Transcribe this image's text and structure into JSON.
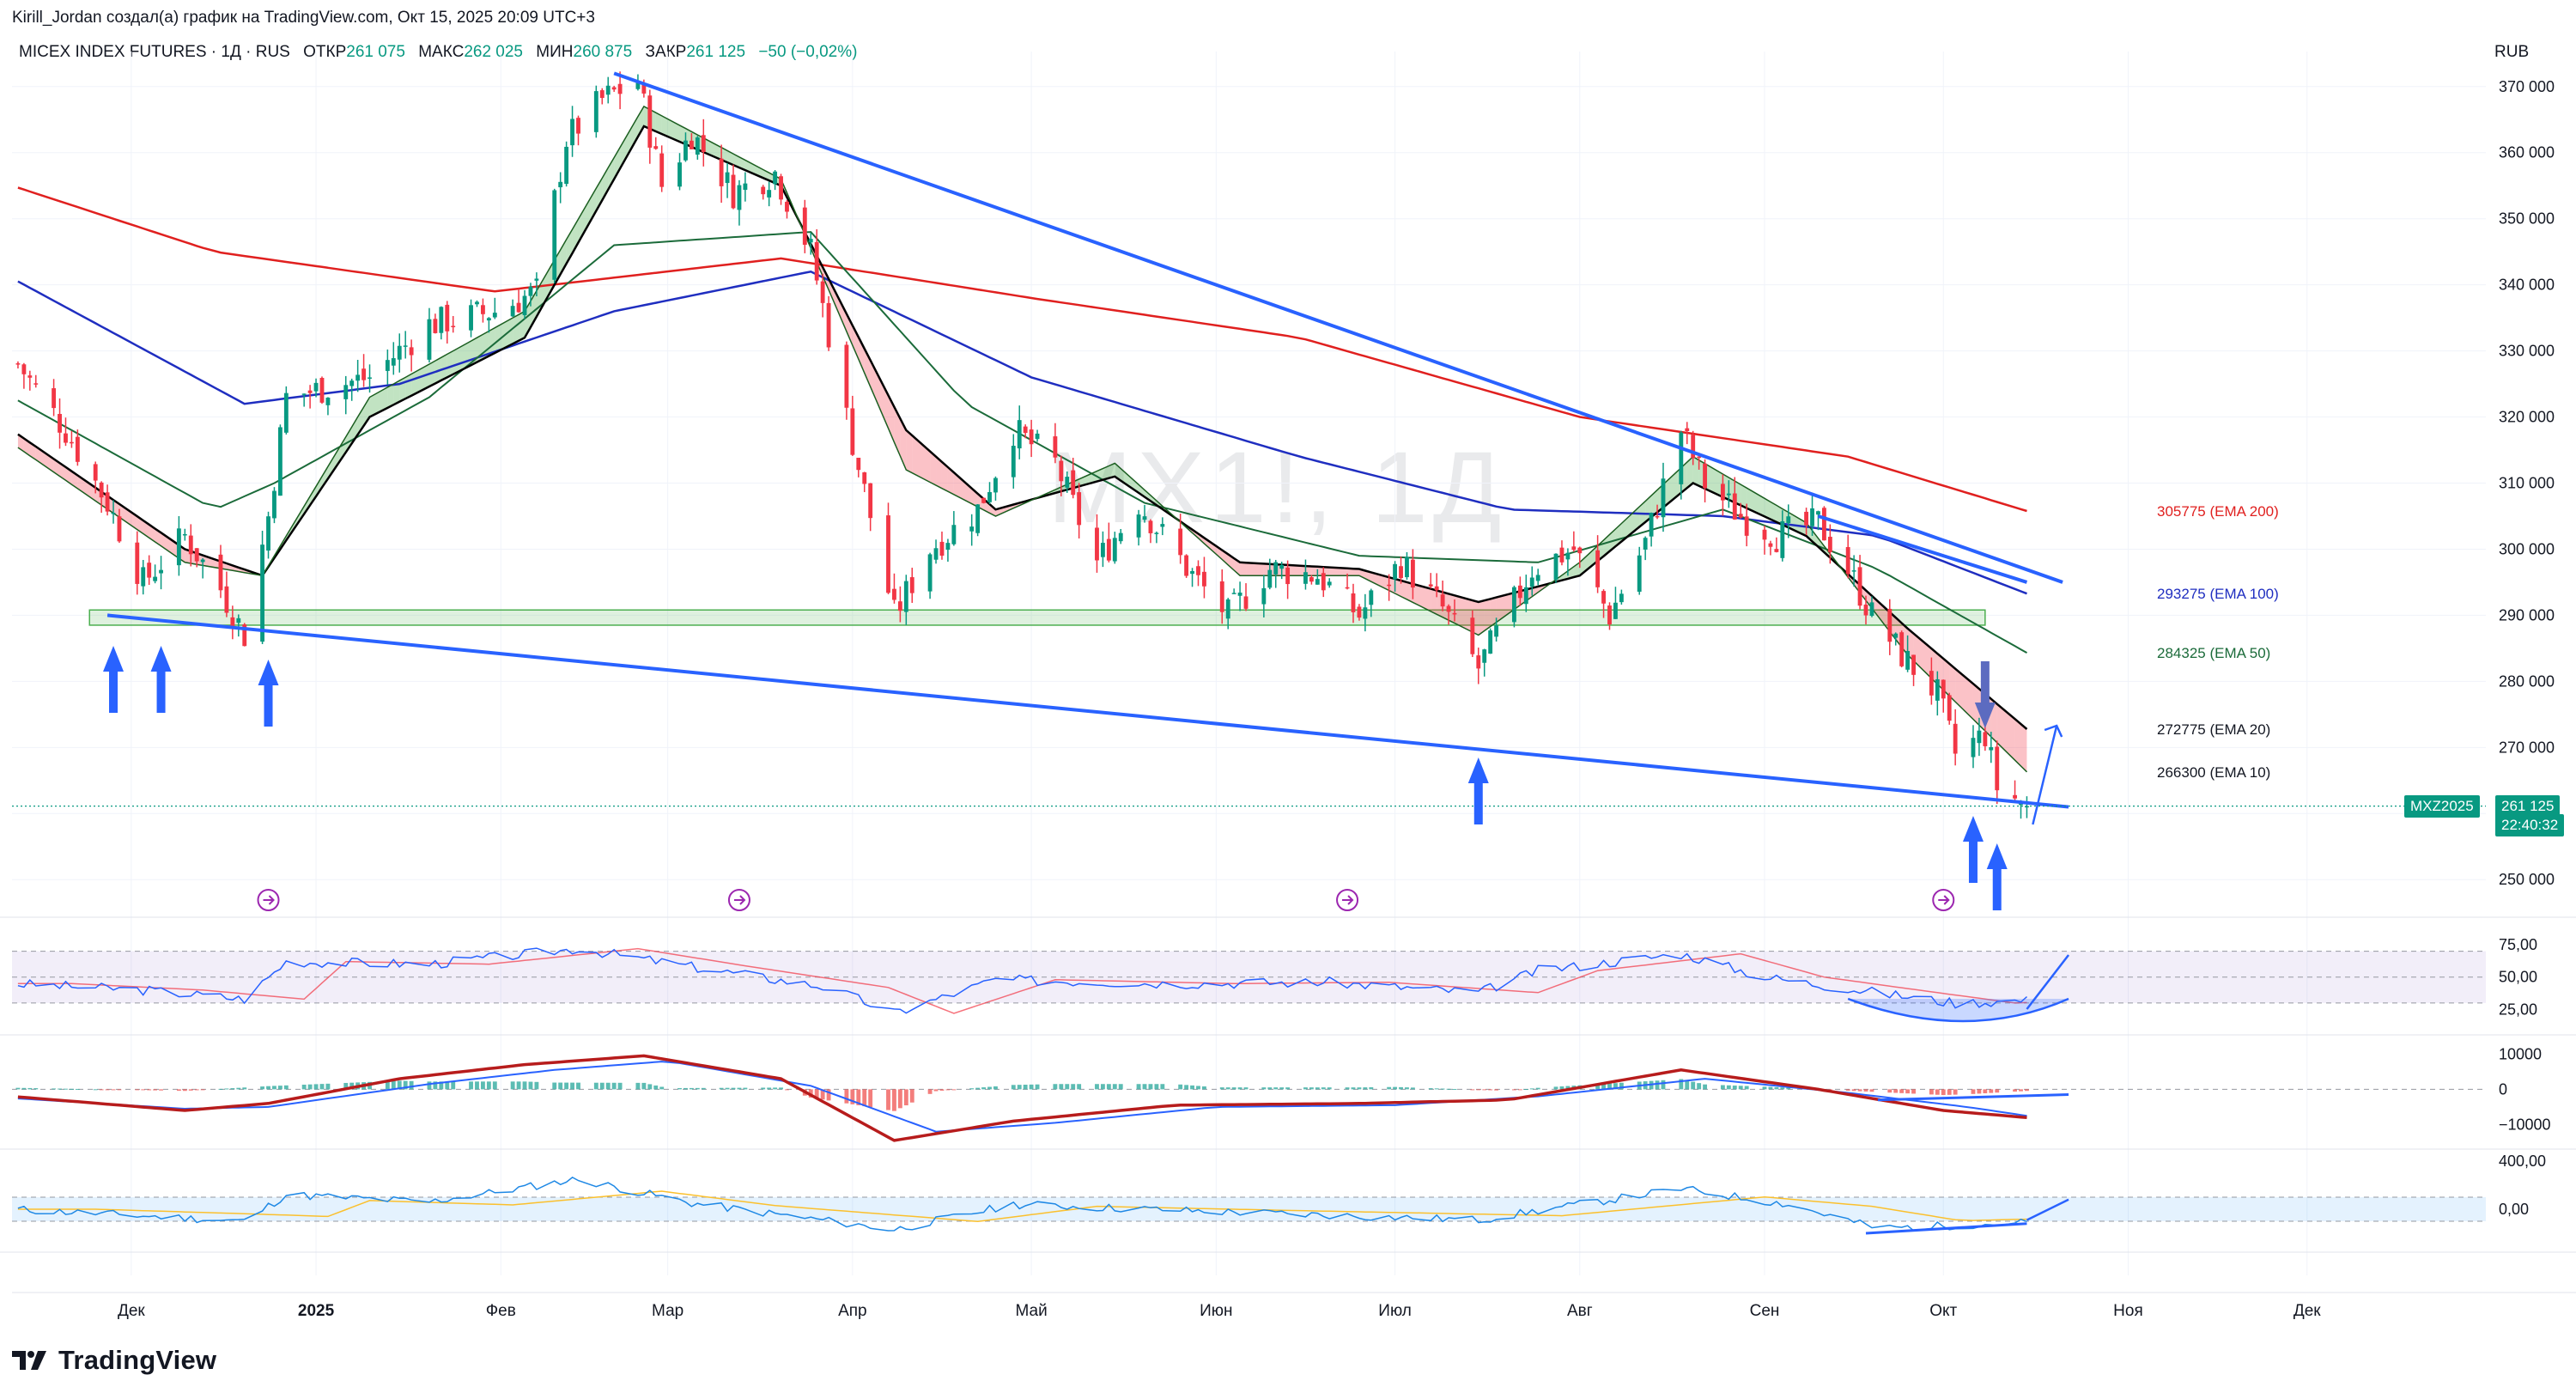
{
  "credit": "Kirill_Jordan создал(а) график на TradingView.com, Окт 15, 2025 20:09 UTC+3",
  "header": {
    "symbol": "MICEX INDEX FUTURES · 1Д · RUS",
    "open_label": "ОТКР",
    "open": "261 075",
    "high_label": "МАКС",
    "high": "262 025",
    "low_label": "МИН",
    "low": "260 875",
    "close_label": "ЗАКР",
    "close": "261 125",
    "change": "−50 (−0,02%)"
  },
  "currency": "RUB",
  "watermark": "MX1!, 1Д",
  "logo": "TradingView",
  "colors": {
    "up": "#089981",
    "down": "#f23645",
    "ema200": "#e0201f",
    "ema100": "#1f2ec0",
    "ema50": "#1b6b3a",
    "ema20": "#000000",
    "trendline": "#2962ff",
    "accent": "#2962ff"
  },
  "price_tag": {
    "symbol": "MXZ2025",
    "price": "261 125",
    "timer": "22:40:32"
  },
  "ema_labels": [
    {
      "value": 305775,
      "text": "305775 (EMA 200)",
      "color": "#e0201f"
    },
    {
      "value": 293275,
      "text": "293275 (EMA 100)",
      "color": "#1f2ec0"
    },
    {
      "value": 284325,
      "text": "284325 (EMA 50)",
      "color": "#1b6b3a"
    },
    {
      "value": 272775,
      "text": "272775 (EMA 20)",
      "color": "#131722"
    },
    {
      "value": 266300,
      "text": "266300 (EMA 10)",
      "color": "#131722"
    }
  ],
  "chart_data": {
    "type": "candlestick",
    "price_axis": {
      "ticks": [
        250000,
        260000,
        270000,
        280000,
        290000,
        300000,
        310000,
        320000,
        330000,
        340000,
        350000,
        360000,
        370000
      ],
      "tick_labels": [
        "250 000",
        "260 000",
        "270 000",
        "280 000",
        "290 000",
        "300 000",
        "310 000",
        "320 000",
        "330 000",
        "340 000",
        "350 000",
        "360 000",
        "370 000"
      ],
      "range": [
        246000,
        374000
      ]
    },
    "time_axis": {
      "labels": [
        "Дек",
        "2025",
        "Фев",
        "Мар",
        "Апр",
        "Май",
        "Июн",
        "Июл",
        "Авг",
        "Сен",
        "Окт",
        "Ноя",
        "Дек"
      ],
      "range": [
        "2024-11-11",
        "2025-12-31"
      ]
    },
    "price_anchors": [
      [
        "2024-11-12",
        328000
      ],
      [
        "2024-11-20",
        318000
      ],
      [
        "2024-11-27",
        307000
      ],
      [
        "2024-12-03",
        295000
      ],
      [
        "2024-12-10",
        302000
      ],
      [
        "2024-12-16",
        294000
      ],
      [
        "2024-12-20",
        287000
      ],
      [
        "2024-12-24",
        305000
      ],
      [
        "2024-12-27",
        323000
      ],
      [
        "2025-01-10",
        326000
      ],
      [
        "2025-01-20",
        334000
      ],
      [
        "2025-01-31",
        336000
      ],
      [
        "2025-02-07",
        339000
      ],
      [
        "2025-02-12",
        362000
      ],
      [
        "2025-02-18",
        368000
      ],
      [
        "2025-02-24",
        371000
      ],
      [
        "2025-02-28",
        355000
      ],
      [
        "2025-03-05",
        363000
      ],
      [
        "2025-03-12",
        354000
      ],
      [
        "2025-03-19",
        357000
      ],
      [
        "2025-03-25",
        345000
      ],
      [
        "2025-03-31",
        320000
      ],
      [
        "2025-04-04",
        305000
      ],
      [
        "2025-04-08",
        290000
      ],
      [
        "2025-04-14",
        300000
      ],
      [
        "2025-04-22",
        306000
      ],
      [
        "2025-04-28",
        318000
      ],
      [
        "2025-05-05",
        313000
      ],
      [
        "2025-05-12",
        298000
      ],
      [
        "2025-05-19",
        307000
      ],
      [
        "2025-05-28",
        296000
      ],
      [
        "2025-06-03",
        290000
      ],
      [
        "2025-06-10",
        297000
      ],
      [
        "2025-06-18",
        296000
      ],
      [
        "2025-06-25",
        290000
      ],
      [
        "2025-07-02",
        298000
      ],
      [
        "2025-07-09",
        291000
      ],
      [
        "2025-07-15",
        282000
      ],
      [
        "2025-07-18",
        287000
      ],
      [
        "2025-07-24",
        297000
      ],
      [
        "2025-07-31",
        300000
      ],
      [
        "2025-08-06",
        290000
      ],
      [
        "2025-08-12",
        301000
      ],
      [
        "2025-08-18",
        318000
      ],
      [
        "2025-08-22",
        310000
      ],
      [
        "2025-08-28",
        305000
      ],
      [
        "2025-09-03",
        302000
      ],
      [
        "2025-09-10",
        304000
      ],
      [
        "2025-09-15",
        297000
      ],
      [
        "2025-09-19",
        290000
      ],
      [
        "2025-09-24",
        284000
      ],
      [
        "2025-09-30",
        278000
      ],
      [
        "2025-10-03",
        269000
      ],
      [
        "2025-10-08",
        272000
      ],
      [
        "2025-10-10",
        264000
      ],
      [
        "2025-10-15",
        261125
      ]
    ],
    "ema_anchors": {
      "ema200": [
        [
          "2024-11-11",
          355000
        ],
        [
          "2024-12-15",
          345000
        ],
        [
          "2025-01-31",
          339000
        ],
        [
          "2025-03-20",
          344000
        ],
        [
          "2025-05-01",
          338000
        ],
        [
          "2025-06-15",
          332000
        ],
        [
          "2025-08-01",
          320000
        ],
        [
          "2025-09-15",
          314000
        ],
        [
          "2025-10-15",
          305775
        ]
      ],
      "ema100": [
        [
          "2024-11-11",
          341000
        ],
        [
          "2024-12-20",
          322000
        ],
        [
          "2025-01-15",
          325000
        ],
        [
          "2025-02-20",
          336000
        ],
        [
          "2025-03-25",
          342000
        ],
        [
          "2025-05-01",
          326000
        ],
        [
          "2025-06-15",
          314000
        ],
        [
          "2025-07-20",
          306000
        ],
        [
          "2025-08-25",
          305000
        ],
        [
          "2025-09-20",
          302000
        ],
        [
          "2025-10-15",
          293275
        ]
      ],
      "ema50": [
        [
          "2024-11-11",
          323000
        ],
        [
          "2024-12-15",
          306000
        ],
        [
          "2024-12-25",
          310000
        ],
        [
          "2025-01-20",
          323000
        ],
        [
          "2025-02-20",
          346000
        ],
        [
          "2025-03-25",
          348000
        ],
        [
          "2025-04-20",
          322000
        ],
        [
          "2025-05-20",
          307000
        ],
        [
          "2025-06-25",
          299000
        ],
        [
          "2025-07-25",
          298000
        ],
        [
          "2025-08-25",
          306000
        ],
        [
          "2025-09-20",
          297000
        ],
        [
          "2025-10-15",
          284325
        ]
      ],
      "ema20": [
        [
          "2024-11-11",
          318000
        ],
        [
          "2024-12-10",
          300000
        ],
        [
          "2024-12-23",
          296000
        ],
        [
          "2025-01-10",
          320000
        ],
        [
          "2025-02-05",
          332000
        ],
        [
          "2025-02-25",
          364000
        ],
        [
          "2025-03-20",
          355000
        ],
        [
          "2025-04-10",
          318000
        ],
        [
          "2025-04-25",
          306000
        ],
        [
          "2025-05-15",
          311000
        ],
        [
          "2025-06-05",
          298000
        ],
        [
          "2025-06-25",
          297000
        ],
        [
          "2025-07-15",
          292000
        ],
        [
          "2025-08-01",
          296000
        ],
        [
          "2025-08-20",
          310000
        ],
        [
          "2025-09-08",
          302000
        ],
        [
          "2025-09-25",
          288000
        ],
        [
          "2025-10-15",
          272775
        ]
      ],
      "ema10": [
        [
          "2024-11-11",
          316000
        ],
        [
          "2024-12-10",
          298000
        ],
        [
          "2024-12-23",
          296000
        ],
        [
          "2025-01-10",
          323000
        ],
        [
          "2025-02-05",
          336000
        ],
        [
          "2025-02-25",
          367000
        ],
        [
          "2025-03-20",
          356000
        ],
        [
          "2025-04-10",
          312000
        ],
        [
          "2025-04-25",
          305000
        ],
        [
          "2025-05-15",
          313000
        ],
        [
          "2025-06-05",
          296000
        ],
        [
          "2025-06-25",
          296000
        ],
        [
          "2025-07-15",
          287000
        ],
        [
          "2025-08-01",
          298000
        ],
        [
          "2025-08-20",
          314000
        ],
        [
          "2025-09-08",
          304000
        ],
        [
          "2025-09-25",
          284000
        ],
        [
          "2025-10-15",
          266300
        ]
      ]
    },
    "trendlines": [
      {
        "from": [
          "2025-02-20",
          372000
        ],
        "to": [
          "2025-10-21",
          295000
        ]
      },
      {
        "from": [
          "2024-11-27",
          290000
        ],
        "to": [
          "2025-10-22",
          261000
        ]
      },
      {
        "from": [
          "2025-09-10",
          305000
        ],
        "to": [
          "2025-10-15",
          295000
        ]
      }
    ],
    "support_zone": {
      "from": "2024-11-24",
      "to": "2025-10-08",
      "low": 288500,
      "high": 290800
    },
    "rsi": {
      "ticks": [
        25,
        50,
        75
      ],
      "tick_labels": [
        "25,00",
        "50,00",
        "75,00"
      ],
      "range": [
        12,
        85
      ],
      "band": [
        30,
        70
      ],
      "anchors": [
        [
          "2024-11-11",
          45
        ],
        [
          "2024-12-03",
          40
        ],
        [
          "2024-12-20",
          33
        ],
        [
          "2024-12-27",
          62
        ],
        [
          "2025-01-20",
          60
        ],
        [
          "2025-02-14",
          72
        ],
        [
          "2025-03-05",
          58
        ],
        [
          "2025-03-28",
          42
        ],
        [
          "2025-04-08",
          22
        ],
        [
          "2025-04-25",
          48
        ],
        [
          "2025-05-25",
          45
        ],
        [
          "2025-06-20",
          46
        ],
        [
          "2025-07-15",
          38
        ],
        [
          "2025-07-25",
          55
        ],
        [
          "2025-08-18",
          68
        ],
        [
          "2025-09-01",
          50
        ],
        [
          "2025-09-20",
          38
        ],
        [
          "2025-10-03",
          30
        ],
        [
          "2025-10-15",
          32
        ]
      ]
    },
    "macd": {
      "ticks": [
        -10000,
        0,
        10000
      ],
      "tick_labels": [
        "−10000",
        "0",
        "10000"
      ],
      "range": [
        -15000,
        13000
      ],
      "macd_anchors": [
        [
          "2024-11-11",
          -2000
        ],
        [
          "2024-12-10",
          -6000
        ],
        [
          "2024-12-24",
          -4000
        ],
        [
          "2025-01-15",
          3000
        ],
        [
          "2025-02-05",
          7000
        ],
        [
          "2025-02-25",
          9500
        ],
        [
          "2025-03-20",
          3000
        ],
        [
          "2025-04-08",
          -14500
        ],
        [
          "2025-04-28",
          -9000
        ],
        [
          "2025-05-25",
          -4500
        ],
        [
          "2025-06-25",
          -4000
        ],
        [
          "2025-07-20",
          -3000
        ],
        [
          "2025-08-18",
          5500
        ],
        [
          "2025-09-10",
          0
        ],
        [
          "2025-10-01",
          -6000
        ],
        [
          "2025-10-15",
          -8000
        ]
      ],
      "signal_anchors": [
        [
          "2024-11-11",
          -2500
        ],
        [
          "2024-12-10",
          -5500
        ],
        [
          "2024-12-24",
          -5000
        ],
        [
          "2025-01-20",
          1500
        ],
        [
          "2025-02-10",
          5500
        ],
        [
          "2025-03-01",
          8000
        ],
        [
          "2025-03-25",
          1000
        ],
        [
          "2025-04-15",
          -12000
        ],
        [
          "2025-05-05",
          -9500
        ],
        [
          "2025-06-01",
          -5000
        ],
        [
          "2025-07-01",
          -4500
        ],
        [
          "2025-07-25",
          -2000
        ],
        [
          "2025-08-22",
          3000
        ],
        [
          "2025-09-15",
          -1000
        ],
        [
          "2025-10-05",
          -5000
        ],
        [
          "2025-10-15",
          -7500
        ]
      ]
    },
    "osc3": {
      "ticks": [
        0,
        400
      ],
      "tick_labels": [
        "0,00",
        "400,00"
      ],
      "range": [
        -300,
        450
      ],
      "band": [
        -100,
        100
      ],
      "anchors": [
        [
          "2024-11-11",
          0
        ],
        [
          "2024-12-05",
          -60
        ],
        [
          "2024-12-20",
          -100
        ],
        [
          "2024-12-27",
          120
        ],
        [
          "2025-01-20",
          60
        ],
        [
          "2025-02-14",
          250
        ],
        [
          "2025-03-05",
          50
        ],
        [
          "2025-04-08",
          -170
        ],
        [
          "2025-04-28",
          40
        ],
        [
          "2025-06-01",
          -20
        ],
        [
          "2025-07-15",
          -90
        ],
        [
          "2025-08-18",
          170
        ],
        [
          "2025-09-05",
          40
        ],
        [
          "2025-09-20",
          -160
        ],
        [
          "2025-10-15",
          -110
        ]
      ]
    }
  }
}
